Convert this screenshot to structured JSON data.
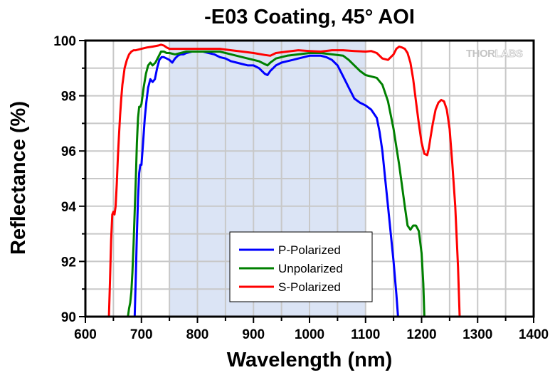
{
  "chart_data": {
    "type": "line",
    "title": "-E03 Coating, 45° AOI",
    "xlabel": "Wavelength (nm)",
    "ylabel": "Reflectance (%)",
    "xlim": [
      600,
      1400
    ],
    "ylim": [
      90,
      100
    ],
    "xticks": [
      600,
      700,
      800,
      900,
      1000,
      1100,
      1200,
      1300,
      1400
    ],
    "yticks": [
      90,
      92,
      94,
      96,
      98,
      100
    ],
    "grid": true,
    "legend_position": "bottom-center",
    "shaded_region": {
      "x_range": [
        750,
        1100
      ],
      "color": "#dbe4f5",
      "label": ""
    },
    "watermark": {
      "text_bold": "THOR",
      "text_outline": "LABS",
      "position": "top-right"
    },
    "colors": {
      "p": "#0000ff",
      "u": "#008000",
      "s": "#ff0000",
      "grid": "#c8c8c8",
      "axis": "#000000"
    },
    "series": [
      {
        "name": "P-Polarized",
        "color": "#0000ff",
        "x": [
          688,
          690,
          692,
          694,
          696,
          698,
          700,
          703,
          706,
          709,
          712,
          716,
          720,
          724,
          728,
          732,
          736,
          740,
          745,
          750,
          755,
          760,
          765,
          770,
          775,
          780,
          790,
          800,
          810,
          820,
          830,
          840,
          850,
          860,
          870,
          880,
          890,
          900,
          910,
          920,
          925,
          930,
          940,
          950,
          960,
          970,
          980,
          990,
          1000,
          1010,
          1020,
          1030,
          1040,
          1050,
          1060,
          1070,
          1080,
          1090,
          1100,
          1110,
          1120,
          1125,
          1130,
          1135,
          1140,
          1145,
          1150,
          1155,
          1158
        ],
        "values": [
          90.0,
          91.5,
          93.0,
          94.3,
          95.2,
          95.5,
          95.5,
          96.3,
          97.2,
          97.8,
          98.3,
          98.6,
          98.5,
          98.6,
          99.0,
          99.3,
          99.4,
          99.4,
          99.35,
          99.3,
          99.2,
          99.35,
          99.45,
          99.5,
          99.5,
          99.55,
          99.6,
          99.6,
          99.6,
          99.55,
          99.5,
          99.4,
          99.35,
          99.25,
          99.2,
          99.15,
          99.1,
          99.1,
          99.0,
          98.8,
          98.75,
          98.9,
          99.1,
          99.2,
          99.25,
          99.3,
          99.35,
          99.4,
          99.45,
          99.45,
          99.45,
          99.4,
          99.3,
          99.1,
          98.7,
          98.3,
          97.9,
          97.75,
          97.65,
          97.5,
          97.2,
          96.7,
          96.0,
          95.0,
          94.0,
          93.0,
          92.0,
          90.8,
          90.0
        ]
      },
      {
        "name": "Unpolarized",
        "color": "#008000",
        "x": [
          676,
          678,
          680,
          682,
          684,
          686,
          688,
          690,
          692,
          694,
          696,
          698,
          700,
          704,
          708,
          712,
          716,
          720,
          725,
          730,
          735,
          740,
          745,
          750,
          760,
          770,
          780,
          790,
          800,
          820,
          840,
          860,
          880,
          900,
          910,
          920,
          925,
          930,
          940,
          960,
          980,
          1000,
          1020,
          1040,
          1060,
          1070,
          1080,
          1090,
          1100,
          1110,
          1120,
          1130,
          1140,
          1150,
          1160,
          1170,
          1175,
          1180,
          1185,
          1190,
          1195,
          1200,
          1203,
          1205
        ],
        "values": [
          90.0,
          90.3,
          90.5,
          90.9,
          91.6,
          92.6,
          93.8,
          95.0,
          96.3,
          97.2,
          97.6,
          97.6,
          97.7,
          98.3,
          98.8,
          99.1,
          99.2,
          99.1,
          99.2,
          99.4,
          99.6,
          99.6,
          99.55,
          99.55,
          99.5,
          99.55,
          99.6,
          99.6,
          99.6,
          99.6,
          99.6,
          99.5,
          99.4,
          99.3,
          99.25,
          99.15,
          99.1,
          99.2,
          99.35,
          99.45,
          99.5,
          99.55,
          99.55,
          99.5,
          99.45,
          99.3,
          99.1,
          98.9,
          98.75,
          98.7,
          98.65,
          98.4,
          97.8,
          96.8,
          95.5,
          94.0,
          93.3,
          93.15,
          93.3,
          93.3,
          93.1,
          92.3,
          91.2,
          90.0
        ]
      },
      {
        "name": "S-Polarized",
        "color": "#ff0000",
        "x": [
          642,
          644,
          646,
          648,
          650,
          652,
          654,
          656,
          658,
          660,
          662,
          664,
          666,
          668,
          670,
          674,
          678,
          682,
          686,
          690,
          700,
          710,
          720,
          730,
          735,
          740,
          745,
          750,
          760,
          780,
          800,
          820,
          840,
          860,
          880,
          900,
          920,
          930,
          940,
          960,
          980,
          1000,
          1020,
          1040,
          1060,
          1080,
          1100,
          1110,
          1120,
          1130,
          1140,
          1145,
          1150,
          1155,
          1160,
          1165,
          1170,
          1175,
          1180,
          1185,
          1190,
          1195,
          1200,
          1205,
          1210,
          1213,
          1216,
          1220,
          1225,
          1230,
          1235,
          1240,
          1245,
          1250,
          1255,
          1260,
          1265,
          1268
        ],
        "values": [
          90.0,
          91.4,
          92.8,
          93.7,
          93.8,
          93.7,
          94.0,
          94.8,
          95.8,
          96.6,
          97.3,
          97.9,
          98.4,
          98.7,
          99.0,
          99.3,
          99.5,
          99.6,
          99.65,
          99.65,
          99.7,
          99.75,
          99.78,
          99.82,
          99.85,
          99.82,
          99.75,
          99.7,
          99.7,
          99.7,
          99.7,
          99.7,
          99.7,
          99.65,
          99.6,
          99.55,
          99.48,
          99.45,
          99.55,
          99.6,
          99.65,
          99.62,
          99.6,
          99.65,
          99.65,
          99.62,
          99.6,
          99.62,
          99.55,
          99.35,
          99.3,
          99.4,
          99.5,
          99.7,
          99.78,
          99.75,
          99.7,
          99.55,
          99.2,
          98.6,
          97.8,
          97.0,
          96.3,
          95.9,
          95.85,
          96.1,
          96.5,
          97.0,
          97.5,
          97.75,
          97.85,
          97.8,
          97.5,
          96.8,
          95.5,
          94.0,
          91.8,
          90.0
        ]
      }
    ]
  }
}
